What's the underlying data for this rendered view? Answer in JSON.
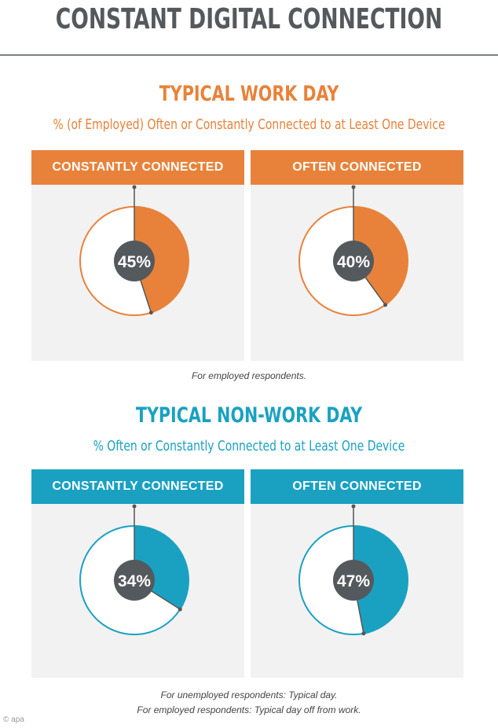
{
  "page": {
    "title": "CONSTANT DIGITAL CONNECTION",
    "credit": "© apa"
  },
  "colors": {
    "orange": "#e8823a",
    "teal": "#1aa1c2",
    "center": "#54595d",
    "panel_bg": "#f2f2f2"
  },
  "sections": [
    {
      "title": "TYPICAL WORK DAY",
      "subtitle": "% (of Employed) Often or Constantly Connected to at Least One Device",
      "notes": [
        "For employed respondents."
      ]
    },
    {
      "title": "TYPICAL NON-WORK DAY",
      "subtitle": "% Often or Constantly Connected to at Least One Device",
      "notes": [
        "For unemployed respondents: Typical day.",
        "For employed respondents: Typical day off from work."
      ]
    }
  ],
  "chart_data": [
    {
      "type": "pie",
      "section": "TYPICAL WORK DAY",
      "title": "CONSTANTLY CONNECTED",
      "value": 45,
      "label": "45%",
      "color": "#e8823a"
    },
    {
      "type": "pie",
      "section": "TYPICAL WORK DAY",
      "title": "OFTEN CONNECTED",
      "value": 40,
      "label": "40%",
      "color": "#e8823a"
    },
    {
      "type": "pie",
      "section": "TYPICAL NON-WORK DAY",
      "title": "CONSTANTLY CONNECTED",
      "value": 34,
      "label": "34%",
      "color": "#1aa1c2"
    },
    {
      "type": "pie",
      "section": "TYPICAL NON-WORK DAY",
      "title": "OFTEN CONNECTED",
      "value": 47,
      "label": "47%",
      "color": "#1aa1c2"
    }
  ]
}
